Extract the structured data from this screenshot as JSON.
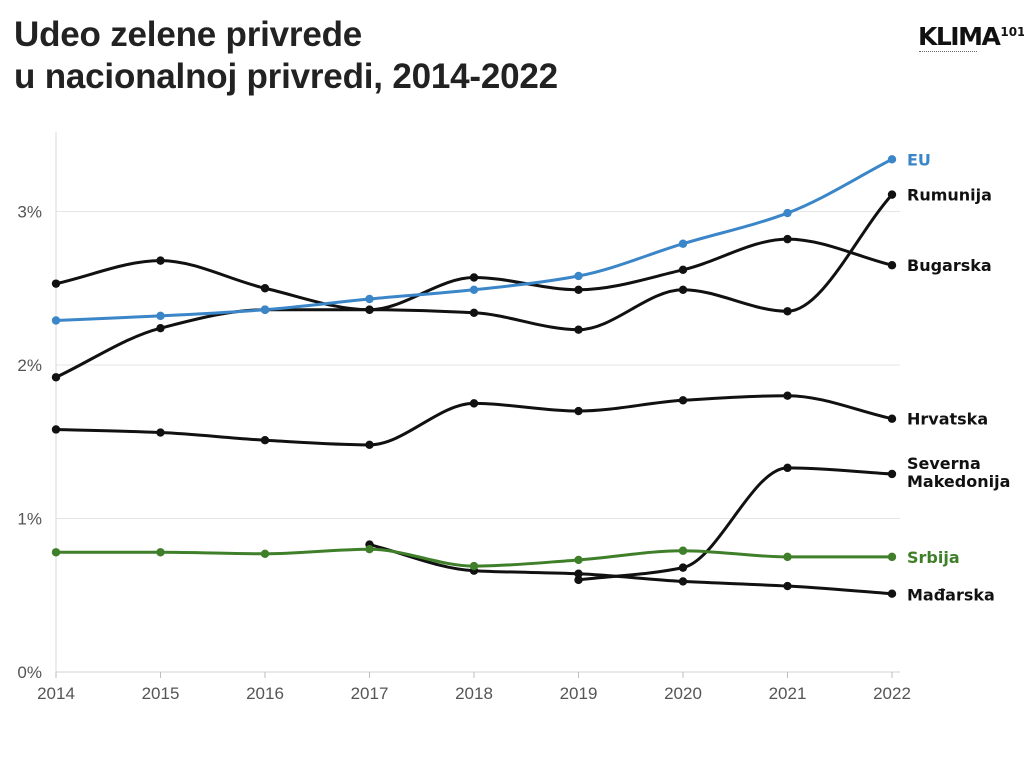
{
  "title": {
    "line1": "Udeo zelene privrede",
    "line2": "u nacionalnoj privredi, 2014-2022"
  },
  "logo": {
    "text": "KLIMA",
    "superscript": "101"
  },
  "chart_data": {
    "type": "line",
    "title": "Udeo zelene privrede u nacionalnoj privredi, 2014-2022",
    "xlabel": "",
    "ylabel": "",
    "x": [
      2014,
      2015,
      2016,
      2017,
      2018,
      2019,
      2020,
      2021,
      2022
    ],
    "x_ticks": [
      "2014",
      "2015",
      "2016",
      "2017",
      "2018",
      "2019",
      "2020",
      "2021",
      "2022"
    ],
    "y_ticks": [
      {
        "value": 0,
        "label": "0%"
      },
      {
        "value": 1,
        "label": "1%"
      },
      {
        "value": 2,
        "label": "2%"
      },
      {
        "value": 3,
        "label": "3%"
      }
    ],
    "ylim": [
      0,
      3.55
    ],
    "grid": "horizontal",
    "legend": "direct labels at line ends (right)",
    "series": [
      {
        "name": "EU",
        "color": "#3a86c8",
        "label_lines": [
          "EU"
        ],
        "segments": [
          {
            "x": [
              2014,
              2015,
              2016,
              2017,
              2018,
              2019,
              2020,
              2021,
              2022
            ],
            "values": [
              2.29,
              2.32,
              2.36,
              2.43,
              2.49,
              2.58,
              2.79,
              2.99,
              3.34
            ]
          }
        ]
      },
      {
        "name": "Rumunija",
        "color": "#111111",
        "label_lines": [
          "Rumunija"
        ],
        "segments": [
          {
            "x": [
              2014,
              2015,
              2016,
              2017,
              2018,
              2019,
              2020,
              2021,
              2022
            ],
            "values": [
              1.92,
              2.24,
              2.36,
              2.36,
              2.34,
              2.23,
              2.49,
              2.35,
              3.11
            ]
          }
        ]
      },
      {
        "name": "Bugarska",
        "color": "#111111",
        "label_lines": [
          "Bugarska"
        ],
        "segments": [
          {
            "x": [
              2014,
              2015,
              2016,
              2017,
              2018,
              2019,
              2020,
              2021,
              2022
            ],
            "values": [
              2.53,
              2.68,
              2.5,
              2.36,
              2.57,
              2.49,
              2.62,
              2.82,
              2.65
            ]
          }
        ]
      },
      {
        "name": "Hrvatska",
        "color": "#111111",
        "label_lines": [
          "Hrvatska"
        ],
        "segments": [
          {
            "x": [
              2014,
              2015,
              2016,
              2017,
              2018,
              2019,
              2020,
              2021,
              2022
            ],
            "values": [
              1.58,
              1.56,
              1.51,
              1.48,
              1.75,
              1.7,
              1.77,
              1.8,
              1.65
            ]
          }
        ]
      },
      {
        "name": "Severna Makedonija",
        "color": "#111111",
        "label_lines": [
          "Severna",
          "Makedonija"
        ],
        "segments": [
          {
            "x": [
              2019,
              2020,
              2021,
              2022
            ],
            "values": [
              0.6,
              0.68,
              1.33,
              1.29
            ]
          }
        ]
      },
      {
        "name": "Mađarska",
        "color": "#111111",
        "label_lines": [
          "Mađarska"
        ],
        "segments": [
          {
            "x": [
              2017,
              2018,
              2019,
              2020,
              2021,
              2022
            ],
            "values": [
              0.83,
              0.66,
              0.64,
              0.59,
              0.56,
              0.51
            ]
          }
        ]
      },
      {
        "name": "Srbija",
        "color": "#3f7f2a",
        "label_lines": [
          "Srbija"
        ],
        "segments": [
          {
            "x": [
              2014,
              2015,
              2016,
              2017,
              2018,
              2019,
              2020,
              2021,
              2022
            ],
            "values": [
              0.78,
              0.78,
              0.77,
              0.8,
              0.69,
              0.73,
              0.79,
              0.75,
              0.75
            ]
          }
        ]
      }
    ]
  }
}
